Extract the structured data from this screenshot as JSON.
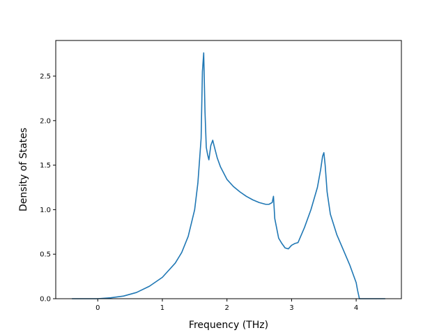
{
  "chart_data": {
    "type": "line",
    "xlabel": "Frequency (THz)",
    "ylabel": "Density of States",
    "xlim": [
      -0.65,
      4.7
    ],
    "ylim": [
      0,
      2.9
    ],
    "xticks": [
      0,
      1,
      2,
      3,
      4
    ],
    "yticks": [
      0.0,
      0.5,
      1.0,
      1.5,
      2.0,
      2.5
    ],
    "xtick_labels": [
      "0",
      "1",
      "2",
      "3",
      "4"
    ],
    "ytick_labels": [
      "0.0",
      "0.5",
      "1.0",
      "1.5",
      "2.0",
      "2.5"
    ],
    "grid": false,
    "line_color": "#1f77b4",
    "series": [
      {
        "x": [
          -0.4,
          0.0,
          0.2,
          0.4,
          0.6,
          0.8,
          1.0,
          1.2,
          1.3,
          1.4,
          1.5,
          1.55,
          1.6,
          1.62,
          1.64,
          1.66,
          1.68,
          1.7,
          1.72,
          1.75,
          1.78,
          1.8,
          1.85,
          1.9,
          2.0,
          2.1,
          2.2,
          2.3,
          2.4,
          2.5,
          2.6,
          2.65,
          2.7,
          2.72,
          2.74,
          2.8,
          2.85,
          2.9,
          2.95,
          3.0,
          3.05,
          3.1,
          3.2,
          3.3,
          3.4,
          3.45,
          3.48,
          3.5,
          3.52,
          3.55,
          3.6,
          3.7,
          3.8,
          3.9,
          3.95,
          4.0,
          4.02,
          4.05,
          4.1,
          4.2,
          4.45
        ],
        "y": [
          0.0,
          0.0,
          0.01,
          0.03,
          0.07,
          0.14,
          0.24,
          0.4,
          0.52,
          0.7,
          1.0,
          1.3,
          1.8,
          2.55,
          2.76,
          2.1,
          1.7,
          1.62,
          1.56,
          1.72,
          1.78,
          1.72,
          1.58,
          1.48,
          1.34,
          1.26,
          1.2,
          1.15,
          1.11,
          1.08,
          1.06,
          1.06,
          1.08,
          1.15,
          0.9,
          0.68,
          0.62,
          0.57,
          0.56,
          0.6,
          0.62,
          0.63,
          0.8,
          1.0,
          1.25,
          1.45,
          1.6,
          1.64,
          1.5,
          1.2,
          0.95,
          0.72,
          0.55,
          0.38,
          0.28,
          0.18,
          0.1,
          0.0,
          0.0,
          0.0,
          0.0
        ]
      }
    ]
  }
}
